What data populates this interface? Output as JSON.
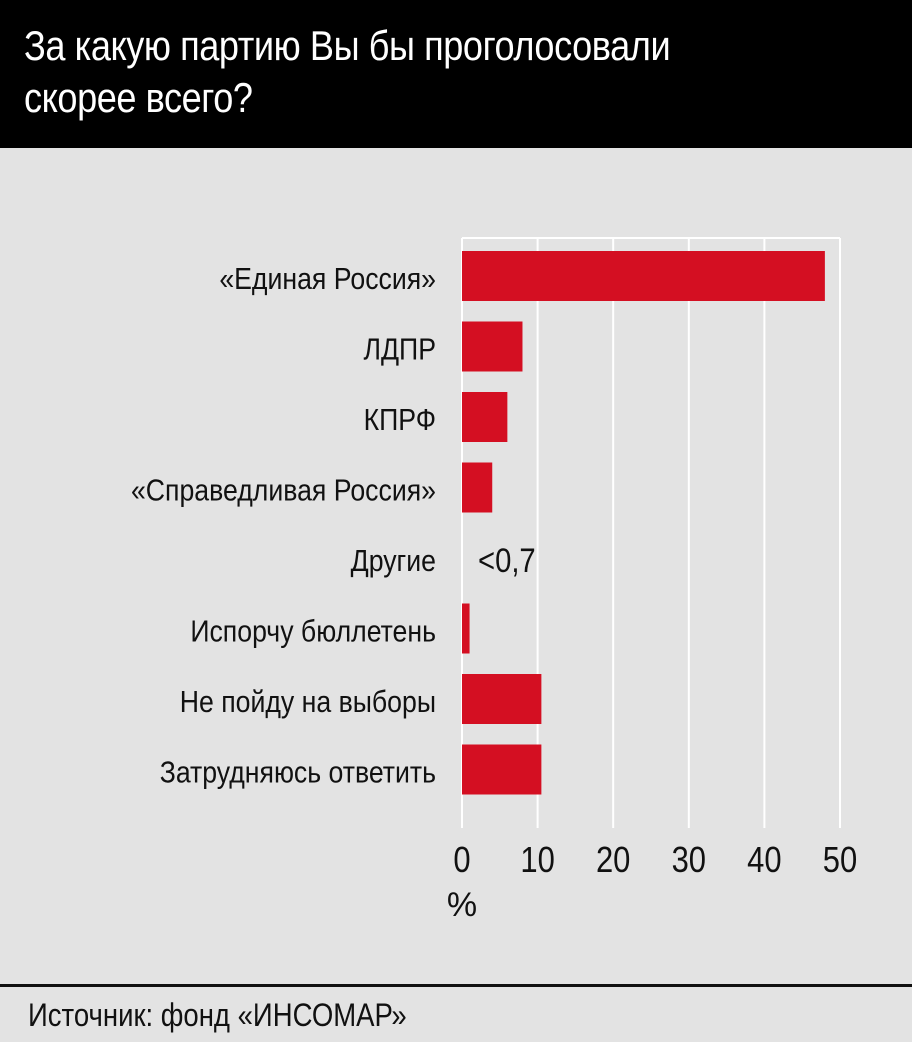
{
  "title": "За какую партию Вы бы проголосовали скорее всего?",
  "source": "Источник: фонд «ИНСОМАР»",
  "colors": {
    "bar": "#d40f22",
    "background": "#e3e3e3",
    "grid": "#ffffff",
    "header": "#000000"
  },
  "chart_data": {
    "type": "bar",
    "orientation": "horizontal",
    "categories": [
      "«Единая Россия»",
      "ЛДПР",
      "КПРФ",
      "«Справедливая Россия»",
      "Другие",
      "Испорчу бюллетень",
      "Не пойду на выборы",
      "Затрудняюсь ответить"
    ],
    "values": [
      48,
      8,
      6,
      4,
      null,
      1,
      10.5,
      10.5
    ],
    "value_labels": [
      null,
      null,
      null,
      null,
      "<0,7",
      null,
      null,
      null
    ],
    "xlim": [
      0,
      50
    ],
    "xticks": [
      0,
      10,
      20,
      30,
      40,
      50
    ],
    "xlabel": "%",
    "grid": true
  }
}
